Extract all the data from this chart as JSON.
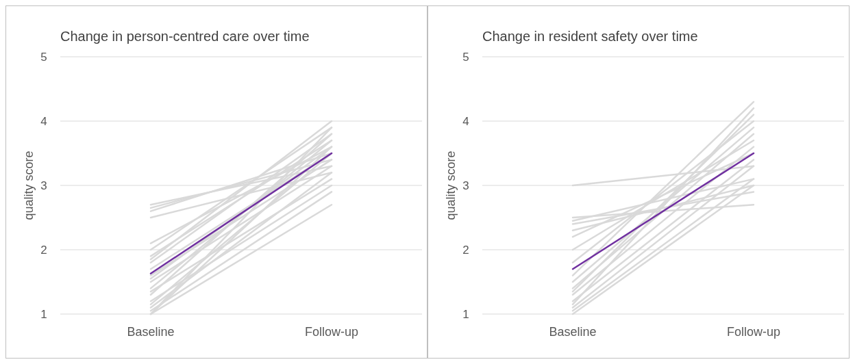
{
  "chart_data": [
    {
      "type": "line",
      "title": "Change in person-centred care over time",
      "ylabel": "quality score",
      "categories": [
        "Baseline",
        "Follow-up"
      ],
      "ylim": [
        1,
        5
      ],
      "yticks": [
        1,
        2,
        3,
        4,
        5
      ],
      "grid": "y",
      "series": [
        {
          "color": "#d9d9d9",
          "values": [
            2.7,
            3.3
          ]
        },
        {
          "color": "#d9d9d9",
          "values": [
            2.65,
            3.4
          ]
        },
        {
          "color": "#d9d9d9",
          "values": [
            2.6,
            3.5
          ]
        },
        {
          "color": "#d9d9d9",
          "values": [
            2.5,
            3.2
          ]
        },
        {
          "color": "#d9d9d9",
          "values": [
            2.1,
            3.6
          ]
        },
        {
          "color": "#d9d9d9",
          "values": [
            2.0,
            3.9
          ]
        },
        {
          "color": "#d9d9d9",
          "values": [
            1.9,
            3.7
          ]
        },
        {
          "color": "#d9d9d9",
          "values": [
            1.85,
            4.0
          ]
        },
        {
          "color": "#d9d9d9",
          "values": [
            1.8,
            3.8
          ]
        },
        {
          "color": "#d9d9d9",
          "values": [
            1.7,
            3.5
          ]
        },
        {
          "color": "#d9d9d9",
          "values": [
            1.6,
            3.4
          ]
        },
        {
          "color": "#d9d9d9",
          "values": [
            1.55,
            3.6
          ]
        },
        {
          "color": "#d9d9d9",
          "values": [
            1.5,
            3.3
          ]
        },
        {
          "color": "#d9d9d9",
          "values": [
            1.4,
            3.7
          ]
        },
        {
          "color": "#d9d9d9",
          "values": [
            1.35,
            3.1
          ]
        },
        {
          "color": "#d9d9d9",
          "values": [
            1.3,
            3.8
          ]
        },
        {
          "color": "#d9d9d9",
          "values": [
            1.2,
            3.0
          ]
        },
        {
          "color": "#d9d9d9",
          "values": [
            1.15,
            3.5
          ]
        },
        {
          "color": "#d9d9d9",
          "values": [
            1.1,
            3.2
          ]
        },
        {
          "color": "#d9d9d9",
          "values": [
            1.05,
            2.9
          ]
        },
        {
          "color": "#d9d9d9",
          "values": [
            1.0,
            2.7
          ]
        },
        {
          "color": "#d9d9d9",
          "values": [
            1.0,
            3.9
          ]
        },
        {
          "color": "#d9d9d9",
          "values": [
            1.0,
            3.6
          ]
        },
        {
          "color": "#7030a0",
          "values": [
            1.63,
            3.5
          ]
        }
      ]
    },
    {
      "type": "line",
      "title": "Change in resident safety over time",
      "ylabel": "quality score",
      "categories": [
        "Baseline",
        "Follow-up"
      ],
      "ylim": [
        1,
        5
      ],
      "yticks": [
        1,
        2,
        3,
        4,
        5
      ],
      "grid": "y",
      "series": [
        {
          "color": "#d9d9d9",
          "values": [
            3.0,
            3.3
          ]
        },
        {
          "color": "#d9d9d9",
          "values": [
            2.5,
            2.7
          ]
        },
        {
          "color": "#d9d9d9",
          "values": [
            2.45,
            3.1
          ]
        },
        {
          "color": "#d9d9d9",
          "values": [
            2.4,
            2.9
          ]
        },
        {
          "color": "#d9d9d9",
          "values": [
            2.3,
            3.0
          ]
        },
        {
          "color": "#d9d9d9",
          "values": [
            2.2,
            3.5
          ]
        },
        {
          "color": "#d9d9d9",
          "values": [
            2.0,
            3.7
          ]
        },
        {
          "color": "#d9d9d9",
          "values": [
            1.8,
            4.0
          ]
        },
        {
          "color": "#d9d9d9",
          "values": [
            1.6,
            4.3
          ]
        },
        {
          "color": "#d9d9d9",
          "values": [
            1.5,
            3.9
          ]
        },
        {
          "color": "#d9d9d9",
          "values": [
            1.4,
            3.8
          ]
        },
        {
          "color": "#d9d9d9",
          "values": [
            1.35,
            4.1
          ]
        },
        {
          "color": "#d9d9d9",
          "values": [
            1.3,
            3.6
          ]
        },
        {
          "color": "#d9d9d9",
          "values": [
            1.2,
            3.4
          ]
        },
        {
          "color": "#d9d9d9",
          "values": [
            1.15,
            4.2
          ]
        },
        {
          "color": "#d9d9d9",
          "values": [
            1.1,
            3.3
          ]
        },
        {
          "color": "#d9d9d9",
          "values": [
            1.05,
            3.1
          ]
        },
        {
          "color": "#d9d9d9",
          "values": [
            1.0,
            3.0
          ]
        },
        {
          "color": "#7030a0",
          "values": [
            1.7,
            3.5
          ]
        }
      ]
    }
  ]
}
